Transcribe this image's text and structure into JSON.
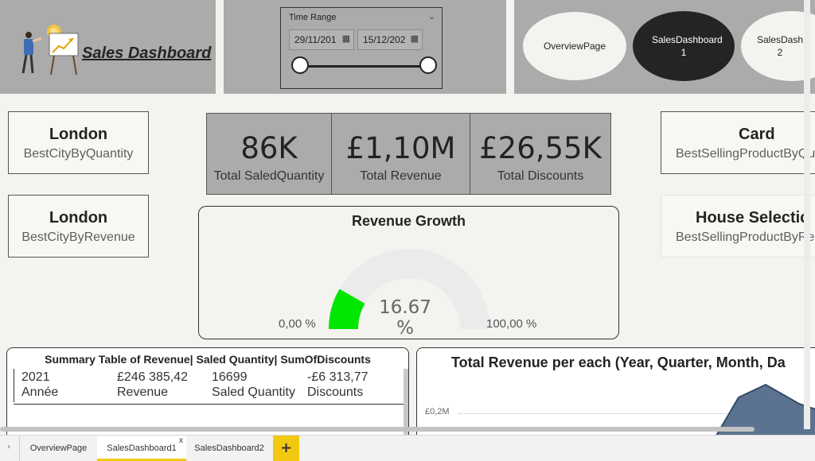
{
  "header": {
    "title": "Sales Dashboard",
    "time_range": {
      "label": "Time Range",
      "start_date": "29/11/201",
      "end_date": "15/12/202"
    },
    "nav_buttons": [
      {
        "label": "OverviewPage",
        "selected": false
      },
      {
        "label": "SalesDashboard 1",
        "selected": true
      },
      {
        "label": "SalesDash 2",
        "selected": false
      }
    ]
  },
  "left_cards": [
    {
      "value": "London",
      "caption": "BestCityByQuantity"
    },
    {
      "value": "London",
      "caption": "BestCityByRevenue"
    }
  ],
  "right_cards": [
    {
      "value": "Card",
      "caption": "BestSellingProductByQu"
    },
    {
      "value": "House Selectic",
      "caption": "BestSellingProductByRe"
    }
  ],
  "kpis": [
    {
      "value": "86K",
      "label": "Total SaledQuantity"
    },
    {
      "value": "£1,10M",
      "label": "Total Revenue"
    },
    {
      "value": "£26,55K",
      "label": "Total Discounts"
    }
  ],
  "gauge": {
    "title": "Revenue Growth",
    "value_label": "16.67 %",
    "fraction": 0.1667,
    "min_label": "0,00 %",
    "max_label": "100,00 %",
    "fill_color": "#00e600",
    "track_color": "#ebebeb"
  },
  "summary_table": {
    "title": "Summary Table of Revenue| Saled Quantity| SumOfDiscounts",
    "columns": [
      "Année",
      "Revenue",
      "Saled Quantity",
      "Discounts"
    ],
    "rows": [
      [
        "2021",
        "£246 385,42",
        "16699",
        "-£6 313,77"
      ]
    ]
  },
  "revenue_chart": {
    "title": "Total Revenue per each (Year, Quarter, Month, Da",
    "y_tick": "£0,2M"
  },
  "tabs": [
    {
      "label": "OverviewPage",
      "active": false
    },
    {
      "label": "SalesDashboard1",
      "active": true
    },
    {
      "label": "SalesDashboard2",
      "active": false
    }
  ],
  "colors": {
    "header_bg": "#ababab",
    "page_bg": "#f4f3ef",
    "selected_nav": "#252423",
    "accent_tab": "#f2c811"
  }
}
